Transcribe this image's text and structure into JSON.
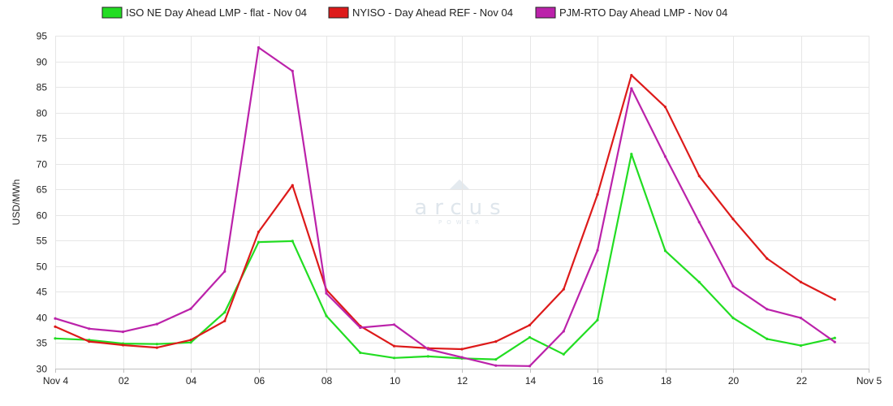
{
  "chart_data": {
    "type": "line",
    "ylabel": "USD/MWh",
    "xlabel": "",
    "ylim": [
      30,
      95
    ],
    "yticks": [
      30,
      35,
      40,
      45,
      50,
      55,
      60,
      65,
      70,
      75,
      80,
      85,
      90,
      95
    ],
    "xlim": [
      0,
      24
    ],
    "x": [
      0,
      1,
      2,
      3,
      4,
      5,
      6,
      7,
      8,
      9,
      10,
      11,
      12,
      13,
      14,
      15,
      16,
      17,
      18,
      19,
      20,
      21,
      22,
      23
    ],
    "xticks": [
      {
        "x": 0,
        "label": "Nov 4"
      },
      {
        "x": 2,
        "label": "02"
      },
      {
        "x": 4,
        "label": "04"
      },
      {
        "x": 6,
        "label": "06"
      },
      {
        "x": 8,
        "label": "08"
      },
      {
        "x": 10,
        "label": "10"
      },
      {
        "x": 12,
        "label": "12"
      },
      {
        "x": 14,
        "label": "14"
      },
      {
        "x": 16,
        "label": "16"
      },
      {
        "x": 18,
        "label": "18"
      },
      {
        "x": 20,
        "label": "20"
      },
      {
        "x": 22,
        "label": "22"
      },
      {
        "x": 24,
        "label": "Nov 5"
      }
    ],
    "grid": true,
    "legend": "top-center",
    "series": [
      {
        "name": "ISO NE Day Ahead LMP - flat - Nov 04",
        "color": "#22dd22",
        "values": [
          35.9,
          35.6,
          34.9,
          34.8,
          35.1,
          41.0,
          54.7,
          54.9,
          40.3,
          33.1,
          32.1,
          32.4,
          32.0,
          31.8,
          36.1,
          32.8,
          39.5,
          71.9,
          53.0,
          46.9,
          39.9,
          35.8,
          34.5,
          36.0
        ]
      },
      {
        "name": "NYISO - Day Ahead REF - Nov 04",
        "color": "#dd1a1a",
        "values": [
          38.2,
          35.3,
          34.6,
          34.1,
          35.6,
          39.3,
          56.7,
          65.8,
          45.4,
          38.3,
          34.4,
          34.0,
          33.8,
          35.3,
          38.5,
          45.5,
          64.0,
          87.3,
          81.1,
          67.6,
          59.2,
          51.5,
          46.9,
          43.5
        ]
      },
      {
        "name": "PJM-RTO Day Ahead LMP - Nov 04",
        "color": "#bb22aa",
        "values": [
          39.8,
          37.8,
          37.2,
          38.7,
          41.7,
          49.0,
          92.7,
          88.1,
          44.7,
          38.0,
          38.6,
          33.8,
          32.2,
          30.6,
          30.5,
          37.3,
          53.1,
          84.7,
          71.4,
          58.6,
          46.1,
          41.6,
          39.9,
          35.2
        ]
      }
    ]
  },
  "watermark": {
    "brand": "arcus",
    "sub": "POWER"
  }
}
